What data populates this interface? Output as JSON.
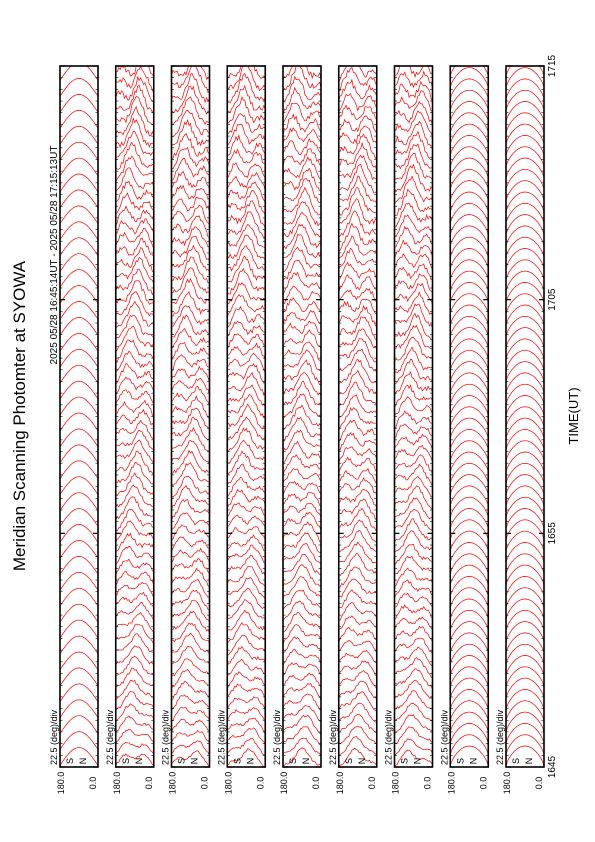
{
  "chart_data": {
    "type": "line",
    "title": "Meridian Scanning Photomter at SYOWA",
    "subtitle": "2025 05/28 16:45:14UT - 2025 05/28 17:15:13UT",
    "xlabel": "TIME(UT)",
    "x_ticks": [
      "1645",
      "1655",
      "1705",
      "1715"
    ],
    "xlim_minutes": [
      0,
      30
    ],
    "y_range_deg": [
      0.0,
      180.0
    ],
    "y_tick_labels": [
      "180.0",
      "0.0"
    ],
    "scale_label": "22.5 (deg)/div",
    "panel_side_labels": [
      "S",
      "N"
    ],
    "panel_count": 9,
    "panel_channels": [
      "",
      "",
      "",
      "",
      "",
      "",
      "",
      "",
      ""
    ],
    "line_color": "#ff0000",
    "grid": false
  }
}
